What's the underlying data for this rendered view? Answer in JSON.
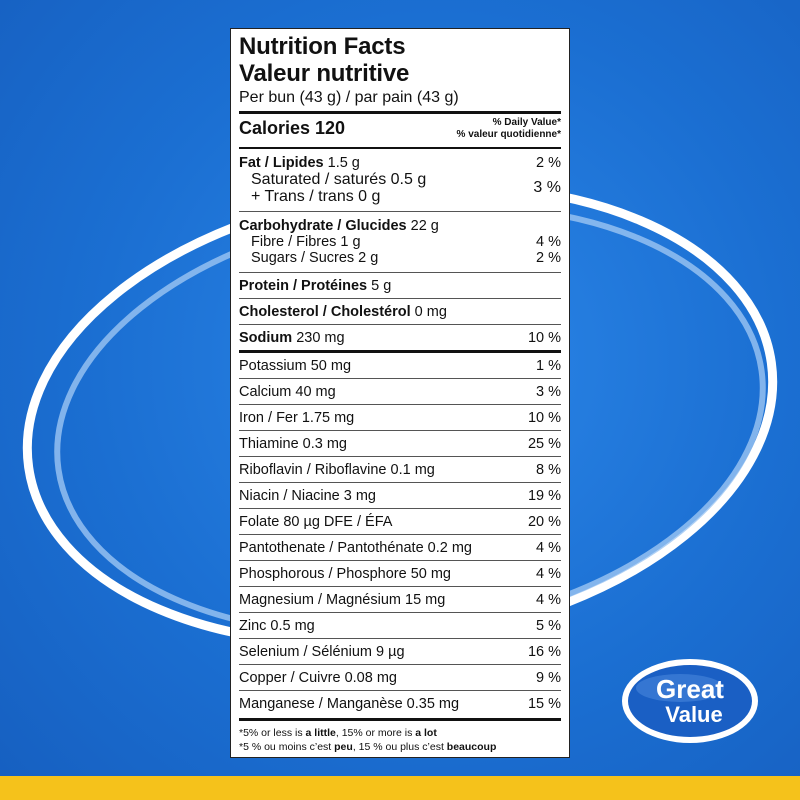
{
  "label": {
    "title_en": "Nutrition Facts",
    "title_fr": "Valeur nutritive",
    "serving": "Per bun (43 g) / par pain (43 g)",
    "calories": "Calories 120",
    "dv_en": "% Daily Value*",
    "dv_fr": "% valeur quotidienne*",
    "fat": {
      "name": "Fat / Lipides",
      "amount": "1.5 g",
      "pct": "2 %"
    },
    "saturated": "Saturated / saturés 0.5 g",
    "trans": "+ Trans / trans 0 g",
    "sat_trans_pct": "3 %",
    "carb": {
      "name": "Carbohydrate / Glucides",
      "amount": "22 g"
    },
    "fibre": {
      "text": "Fibre / Fibres 1 g",
      "pct": "4 %"
    },
    "sugars": {
      "text": "Sugars / Sucres 2 g",
      "pct": "2 %"
    },
    "protein": {
      "name": "Protein / Protéines",
      "amount": "5 g"
    },
    "cholesterol": {
      "name": "Cholesterol / Cholestérol",
      "amount": "0 mg"
    },
    "sodium": {
      "name": "Sodium",
      "amount": "230 mg",
      "pct": "10 %"
    },
    "minerals": [
      {
        "text": "Potassium 50 mg",
        "pct": "1 %"
      },
      {
        "text": "Calcium 40 mg",
        "pct": "3 %"
      },
      {
        "text": "Iron / Fer 1.75 mg",
        "pct": "10 %"
      },
      {
        "text": "Thiamine 0.3 mg",
        "pct": "25 %"
      },
      {
        "text": "Riboflavin / Riboflavine 0.1 mg",
        "pct": "8 %"
      },
      {
        "text": "Niacin / Niacine 3 mg",
        "pct": "19 %"
      },
      {
        "text": "Folate 80 µg DFE / ÉFA",
        "pct": "20 %"
      },
      {
        "text": "Pantothenate / Pantothénate 0.2 mg",
        "pct": "4 %"
      },
      {
        "text": "Phosphorous / Phosphore 50 mg",
        "pct": "4 %"
      },
      {
        "text": "Magnesium / Magnésium 15 mg",
        "pct": "4 %"
      },
      {
        "text": "Zinc 0.5 mg",
        "pct": "5 %"
      },
      {
        "text": "Selenium / Sélénium 9 µg",
        "pct": "16 %"
      },
      {
        "text": "Copper / Cuivre 0.08 mg",
        "pct": "9 %"
      },
      {
        "text": "Manganese / Manganèse 0.35 mg",
        "pct": "15 %"
      }
    ],
    "footnote_en": {
      "a": "*5% or less is ",
      "b": "a little",
      "c": ", 15% or more is ",
      "d": "a lot"
    },
    "footnote_fr": {
      "a": "*5 % ou moins c’est ",
      "b": "peu",
      "c": ", 15 % ou plus c’est ",
      "d": "beaucoup"
    }
  },
  "brand": {
    "line1": "Great",
    "line2": "Value"
  },
  "colors": {
    "background": "#1f74d6",
    "stripe": "#f5c21b",
    "logo_blue": "#1a5fc4"
  }
}
